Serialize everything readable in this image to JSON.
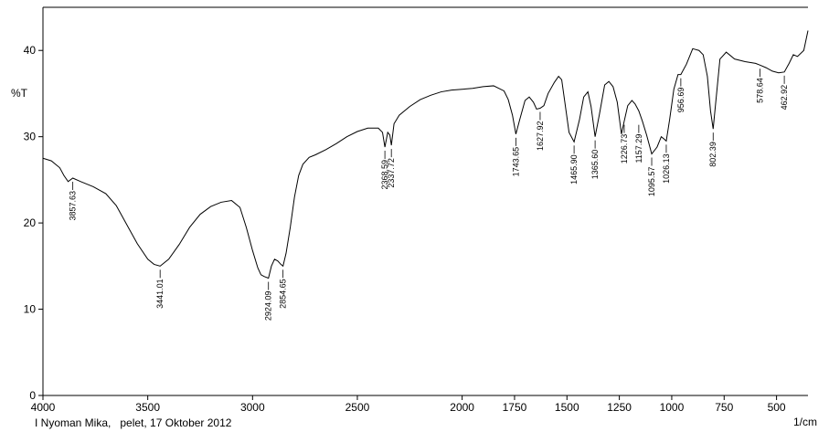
{
  "chart_data": {
    "type": "line",
    "title": "",
    "ylabel": "%T",
    "xlabel": "1/cm",
    "footer": "I Nyoman Mika,   pelet, 17 Oktober 2012",
    "xlim": [
      4000,
      350
    ],
    "ylim": [
      0,
      45
    ],
    "x_ticks": [
      4000,
      3500,
      3000,
      2500,
      2000,
      1750,
      1500,
      1250,
      1000,
      750,
      500
    ],
    "y_ticks": [
      0,
      10,
      20,
      30,
      40
    ],
    "grid": false,
    "series": [
      {
        "x": [
          4000,
          3960,
          3920,
          3900,
          3880,
          3857.63,
          3820,
          3760,
          3700,
          3650,
          3600,
          3550,
          3500,
          3470,
          3441.01,
          3400,
          3350,
          3300,
          3250,
          3200,
          3150,
          3100,
          3060,
          3030,
          3000,
          2975,
          2960,
          2945,
          2924.09,
          2910,
          2895,
          2880,
          2865,
          2854.65,
          2840,
          2820,
          2800,
          2780,
          2760,
          2730,
          2700,
          2650,
          2600,
          2550,
          2500,
          2450,
          2400,
          2380,
          2368.59,
          2355,
          2345,
          2337.72,
          2325,
          2300,
          2250,
          2200,
          2150,
          2100,
          2050,
          2000,
          1950,
          1900,
          1850,
          1800,
          1780,
          1760,
          1743.65,
          1725,
          1700,
          1680,
          1660,
          1645,
          1627.92,
          1610,
          1590,
          1560,
          1540,
          1525,
          1510,
          1490,
          1465.9,
          1440,
          1420,
          1400,
          1385,
          1365.6,
          1345,
          1320,
          1300,
          1280,
          1260,
          1240,
          1226.73,
          1210,
          1190,
          1175,
          1157.29,
          1140,
          1120,
          1095.57,
          1070,
          1050,
          1040,
          1026.13,
          1010,
          990,
          970,
          956.69,
          930,
          900,
          870,
          850,
          830,
          815,
          802.39,
          790,
          770,
          740,
          700,
          650,
          600,
          578.64,
          550,
          520,
          490,
          462.92,
          440,
          420,
          400,
          370,
          350
        ],
        "y": [
          27.5,
          27.2,
          26.4,
          25.5,
          24.8,
          25.2,
          24.8,
          24.2,
          23.4,
          22.0,
          19.8,
          17.6,
          15.8,
          15.2,
          15.0,
          15.8,
          17.5,
          19.5,
          21.0,
          21.9,
          22.4,
          22.6,
          21.8,
          19.5,
          16.8,
          14.8,
          14.0,
          13.8,
          13.6,
          15.0,
          15.8,
          15.6,
          15.2,
          15.0,
          16.5,
          19.5,
          23.0,
          25.5,
          26.8,
          27.6,
          27.9,
          28.5,
          29.2,
          30.0,
          30.6,
          31.0,
          31.0,
          30.5,
          28.8,
          30.5,
          30.2,
          29.0,
          31.5,
          32.5,
          33.5,
          34.3,
          34.8,
          35.2,
          35.4,
          35.5,
          35.6,
          35.8,
          35.9,
          35.3,
          34.3,
          32.5,
          30.3,
          32.0,
          34.2,
          34.6,
          34.0,
          33.2,
          33.3,
          33.6,
          35.0,
          36.3,
          37.0,
          36.6,
          34.0,
          30.5,
          29.4,
          32.0,
          34.6,
          35.2,
          33.5,
          30.0,
          32.6,
          36.0,
          36.4,
          35.8,
          34.0,
          30.3,
          31.8,
          33.6,
          34.2,
          33.8,
          33.0,
          31.8,
          30.2,
          28.0,
          28.8,
          30.0,
          29.8,
          29.5,
          32.0,
          35.5,
          37.2,
          37.2,
          38.4,
          40.2,
          40.0,
          39.5,
          37.0,
          33.0,
          30.9,
          34.0,
          39.0,
          39.8,
          39.0,
          38.7,
          38.5,
          38.3,
          38.0,
          37.6,
          37.4,
          37.5,
          38.5,
          39.5,
          39.3,
          40.0,
          42.3
        ]
      }
    ],
    "peaks": [
      {
        "label": "3857.63",
        "x": 3857.63,
        "y": 25.2
      },
      {
        "label": "3441.01",
        "x": 3441.01,
        "y": 15.0
      },
      {
        "label": "2924.09",
        "x": 2924.09,
        "y": 13.6
      },
      {
        "label": "2854.65",
        "x": 2854.65,
        "y": 15.0
      },
      {
        "label": "2368.59",
        "x": 2368.59,
        "y": 28.8
      },
      {
        "label": "2337.72",
        "x": 2337.72,
        "y": 29.0
      },
      {
        "label": "1743.65",
        "x": 1743.65,
        "y": 30.3
      },
      {
        "label": "1627.92",
        "x": 1627.92,
        "y": 33.3
      },
      {
        "label": "1465.90",
        "x": 1465.9,
        "y": 29.4
      },
      {
        "label": "1365.60",
        "x": 1365.6,
        "y": 30.0
      },
      {
        "label": "1226.73",
        "x": 1226.73,
        "y": 31.8
      },
      {
        "label": "1157.29",
        "x": 1157.29,
        "y": 31.8
      },
      {
        "label": "1095.57",
        "x": 1095.57,
        "y": 28.0
      },
      {
        "label": "1026.13",
        "x": 1026.13,
        "y": 29.5
      },
      {
        "label": "956.69",
        "x": 956.69,
        "y": 37.2
      },
      {
        "label": "802.39",
        "x": 802.39,
        "y": 30.9
      },
      {
        "label": "578.64",
        "x": 578.64,
        "y": 38.3
      },
      {
        "label": "462.92",
        "x": 462.92,
        "y": 37.5
      }
    ]
  }
}
